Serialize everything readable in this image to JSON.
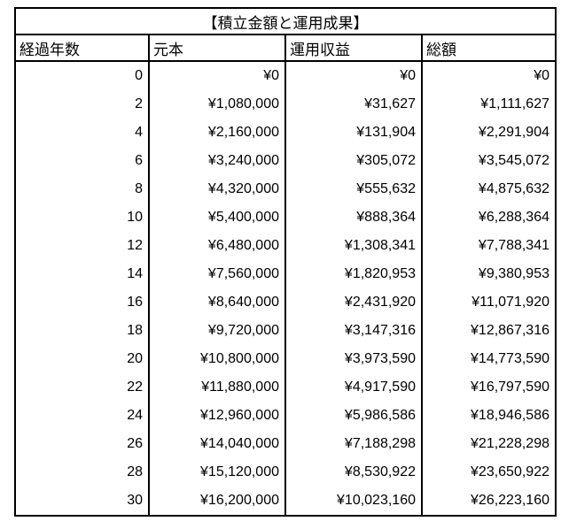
{
  "table": {
    "title": "【積立金額と運用成果】",
    "columns": [
      "経過年数",
      "元本",
      "運用収益",
      "総額"
    ],
    "rows": [
      [
        "0",
        "¥0",
        "¥0",
        "¥0"
      ],
      [
        "2",
        "¥1,080,000",
        "¥31,627",
        "¥1,111,627"
      ],
      [
        "4",
        "¥2,160,000",
        "¥131,904",
        "¥2,291,904"
      ],
      [
        "6",
        "¥3,240,000",
        "¥305,072",
        "¥3,545,072"
      ],
      [
        "8",
        "¥4,320,000",
        "¥555,632",
        "¥4,875,632"
      ],
      [
        "10",
        "¥5,400,000",
        "¥888,364",
        "¥6,288,364"
      ],
      [
        "12",
        "¥6,480,000",
        "¥1,308,341",
        "¥7,788,341"
      ],
      [
        "14",
        "¥7,560,000",
        "¥1,820,953",
        "¥9,380,953"
      ],
      [
        "16",
        "¥8,640,000",
        "¥2,431,920",
        "¥11,071,920"
      ],
      [
        "18",
        "¥9,720,000",
        "¥3,147,316",
        "¥12,867,316"
      ],
      [
        "20",
        "¥10,800,000",
        "¥3,973,590",
        "¥14,773,590"
      ],
      [
        "22",
        "¥11,880,000",
        "¥4,917,590",
        "¥16,797,590"
      ],
      [
        "24",
        "¥12,960,000",
        "¥5,986,586",
        "¥18,946,586"
      ],
      [
        "26",
        "¥14,040,000",
        "¥7,188,298",
        "¥21,228,298"
      ],
      [
        "28",
        "¥15,120,000",
        "¥8,530,922",
        "¥23,650,922"
      ],
      [
        "30",
        "¥16,200,000",
        "¥10,023,160",
        "¥26,223,160"
      ]
    ],
    "colors": {
      "border": "#000000",
      "text": "#000000",
      "background": "#ffffff"
    }
  }
}
